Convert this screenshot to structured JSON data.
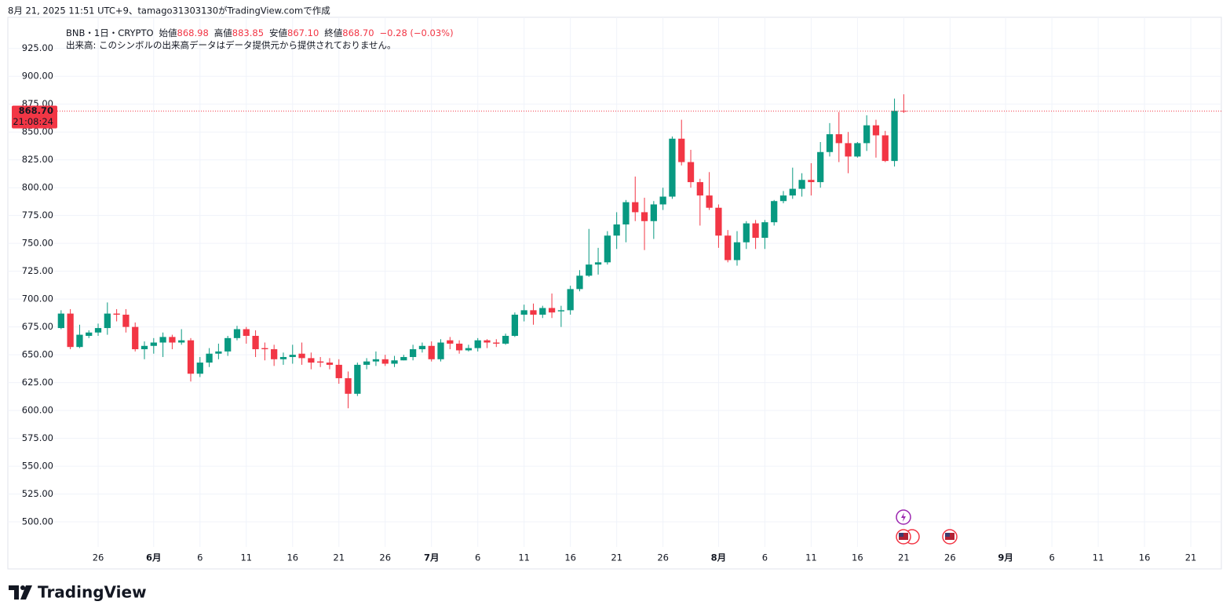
{
  "caption": "8月 21, 2025 11:51 UTC+9、tamago31303130がTradingView.comで作成",
  "logo": "TradingView",
  "chart_data": {
    "type": "candlestick",
    "legend": {
      "symbol": "BNB・1日・CRYPTO",
      "open_label": "始値",
      "open": "868.98",
      "high_label": "高値",
      "high": "883.85",
      "low_label": "安値",
      "low": "867.10",
      "close_label": "終値",
      "close": "868.70",
      "change": "−0.28 (−0.03%)"
    },
    "volume_note": "出来高: このシンボルの出来高データはデータ提供元から提供されておりません。",
    "last_price": 868.7,
    "last_price_label": "868.70",
    "countdown": "21:08:24",
    "up_color": "#089981",
    "down_color": "#f23645",
    "grid": true,
    "open": [
      674,
      687,
      657,
      667,
      670,
      674,
      687,
      686,
      675,
      655,
      658,
      661,
      666,
      661,
      663,
      633,
      643,
      651,
      653,
      665,
      673,
      667,
      656,
      655,
      646,
      648,
      651,
      647,
      644,
      643,
      641,
      629,
      615,
      641,
      644,
      646,
      642,
      645,
      648,
      655,
      658,
      646,
      663,
      660,
      654,
      656,
      663,
      661,
      660,
      667,
      686,
      690,
      686,
      692,
      689,
      690,
      709,
      721,
      731,
      733,
      757,
      767,
      787,
      778,
      770,
      785,
      792,
      844,
      823,
      805,
      793,
      782,
      757,
      735,
      751,
      768,
      755,
      769,
      788,
      793,
      799,
      807,
      805,
      832,
      848,
      840,
      828,
      840,
      856,
      847,
      824,
      868.98
    ],
    "high": [
      690,
      691,
      677,
      672,
      678,
      697,
      691,
      691,
      679,
      662,
      665,
      670,
      668,
      673,
      665,
      648,
      656,
      660,
      667,
      676,
      675,
      672,
      661,
      659,
      652,
      659,
      661,
      652,
      648,
      647,
      646,
      635,
      643,
      647,
      653,
      650,
      649,
      650,
      659,
      661,
      662,
      664,
      666,
      663,
      659,
      665,
      664,
      664,
      669,
      688,
      695,
      696,
      694,
      705,
      694,
      712,
      726,
      763,
      746,
      761,
      778,
      789,
      810,
      791,
      788,
      800,
      846,
      861,
      834,
      808,
      814,
      785,
      762,
      761,
      770,
      771,
      771,
      789,
      797,
      818,
      813,
      822,
      841,
      858,
      868,
      850,
      841,
      865,
      861,
      851,
      880,
      883.85
    ],
    "low": [
      673,
      655,
      656,
      665,
      667,
      668,
      680,
      670,
      653,
      646,
      651,
      648,
      655,
      659,
      626,
      630,
      639,
      646,
      649,
      663,
      660,
      648,
      645,
      640,
      641,
      642,
      641,
      637,
      639,
      637,
      624,
      602,
      613,
      637,
      640,
      640,
      639,
      645,
      645,
      652,
      644,
      644,
      655,
      651,
      653,
      653,
      656,
      657,
      659,
      666,
      680,
      677,
      683,
      683,
      675,
      686,
      707,
      720,
      722,
      731,
      745,
      751,
      770,
      744,
      754,
      780,
      790,
      820,
      800,
      766,
      780,
      746,
      733,
      730,
      745,
      745,
      745,
      766,
      786,
      790,
      792,
      793,
      800,
      828,
      823,
      813,
      827,
      833,
      827,
      823,
      819,
      867.1
    ],
    "close": [
      687,
      657,
      668,
      670,
      674,
      687,
      686,
      675,
      655,
      658,
      661,
      666,
      661,
      663,
      633,
      643,
      651,
      653,
      665,
      673,
      667,
      655,
      655,
      646,
      648,
      650,
      647,
      643,
      643,
      641,
      629,
      615,
      641,
      644,
      646,
      642,
      645,
      648,
      655,
      658,
      646,
      661,
      660,
      654,
      656,
      663,
      661,
      660,
      667,
      686,
      690,
      686,
      692,
      688,
      690,
      709,
      721,
      731,
      733,
      757,
      767,
      787,
      778,
      770,
      785,
      792,
      844,
      823,
      805,
      793,
      782,
      757,
      735,
      751,
      768,
      755,
      769,
      788,
      793,
      799,
      807,
      805,
      832,
      848,
      840,
      828,
      840,
      856,
      847,
      824,
      869,
      868.7
    ],
    "xlim": [
      -5.75,
      125.3
    ],
    "xticks": [
      {
        "value": 4,
        "label": "26"
      },
      {
        "value": 10,
        "label": "6月"
      },
      {
        "value": 15,
        "label": "6"
      },
      {
        "value": 20,
        "label": "11"
      },
      {
        "value": 25,
        "label": "16"
      },
      {
        "value": 30,
        "label": "21"
      },
      {
        "value": 35,
        "label": "26"
      },
      {
        "value": 40,
        "label": "7月"
      },
      {
        "value": 45,
        "label": "6"
      },
      {
        "value": 50,
        "label": "11"
      },
      {
        "value": 55,
        "label": "16"
      },
      {
        "value": 60,
        "label": "21"
      },
      {
        "value": 65,
        "label": "26"
      },
      {
        "value": 71,
        "label": "8月"
      },
      {
        "value": 76,
        "label": "6"
      },
      {
        "value": 81,
        "label": "11"
      },
      {
        "value": 86,
        "label": "16"
      },
      {
        "value": 91,
        "label": "21"
      },
      {
        "value": 96,
        "label": "26"
      },
      {
        "value": 102,
        "label": "9月"
      },
      {
        "value": 107,
        "label": "6"
      },
      {
        "value": 112,
        "label": "11"
      },
      {
        "value": 117,
        "label": "16"
      },
      {
        "value": 122,
        "label": "21"
      }
    ],
    "ylim": [
      477.5,
      953
    ],
    "yticks": [
      {
        "value": 500,
        "label": "500.00"
      },
      {
        "value": 525,
        "label": "525.00"
      },
      {
        "value": 550,
        "label": "550.00"
      },
      {
        "value": 575,
        "label": "575.00"
      },
      {
        "value": 600,
        "label": "600.00"
      },
      {
        "value": 625,
        "label": "625.00"
      },
      {
        "value": 650,
        "label": "650.00"
      },
      {
        "value": 675,
        "label": "675.00"
      },
      {
        "value": 700,
        "label": "700.00"
      },
      {
        "value": 725,
        "label": "725.00"
      },
      {
        "value": 750,
        "label": "750.00"
      },
      {
        "value": 775,
        "label": "775.00"
      },
      {
        "value": 800,
        "label": "800.00"
      },
      {
        "value": 825,
        "label": "825.00"
      },
      {
        "value": 850,
        "label": "850.00"
      },
      {
        "value": 875,
        "label": "875.00"
      },
      {
        "value": 900,
        "label": "900.00"
      },
      {
        "value": 925,
        "label": "925.00"
      }
    ]
  }
}
